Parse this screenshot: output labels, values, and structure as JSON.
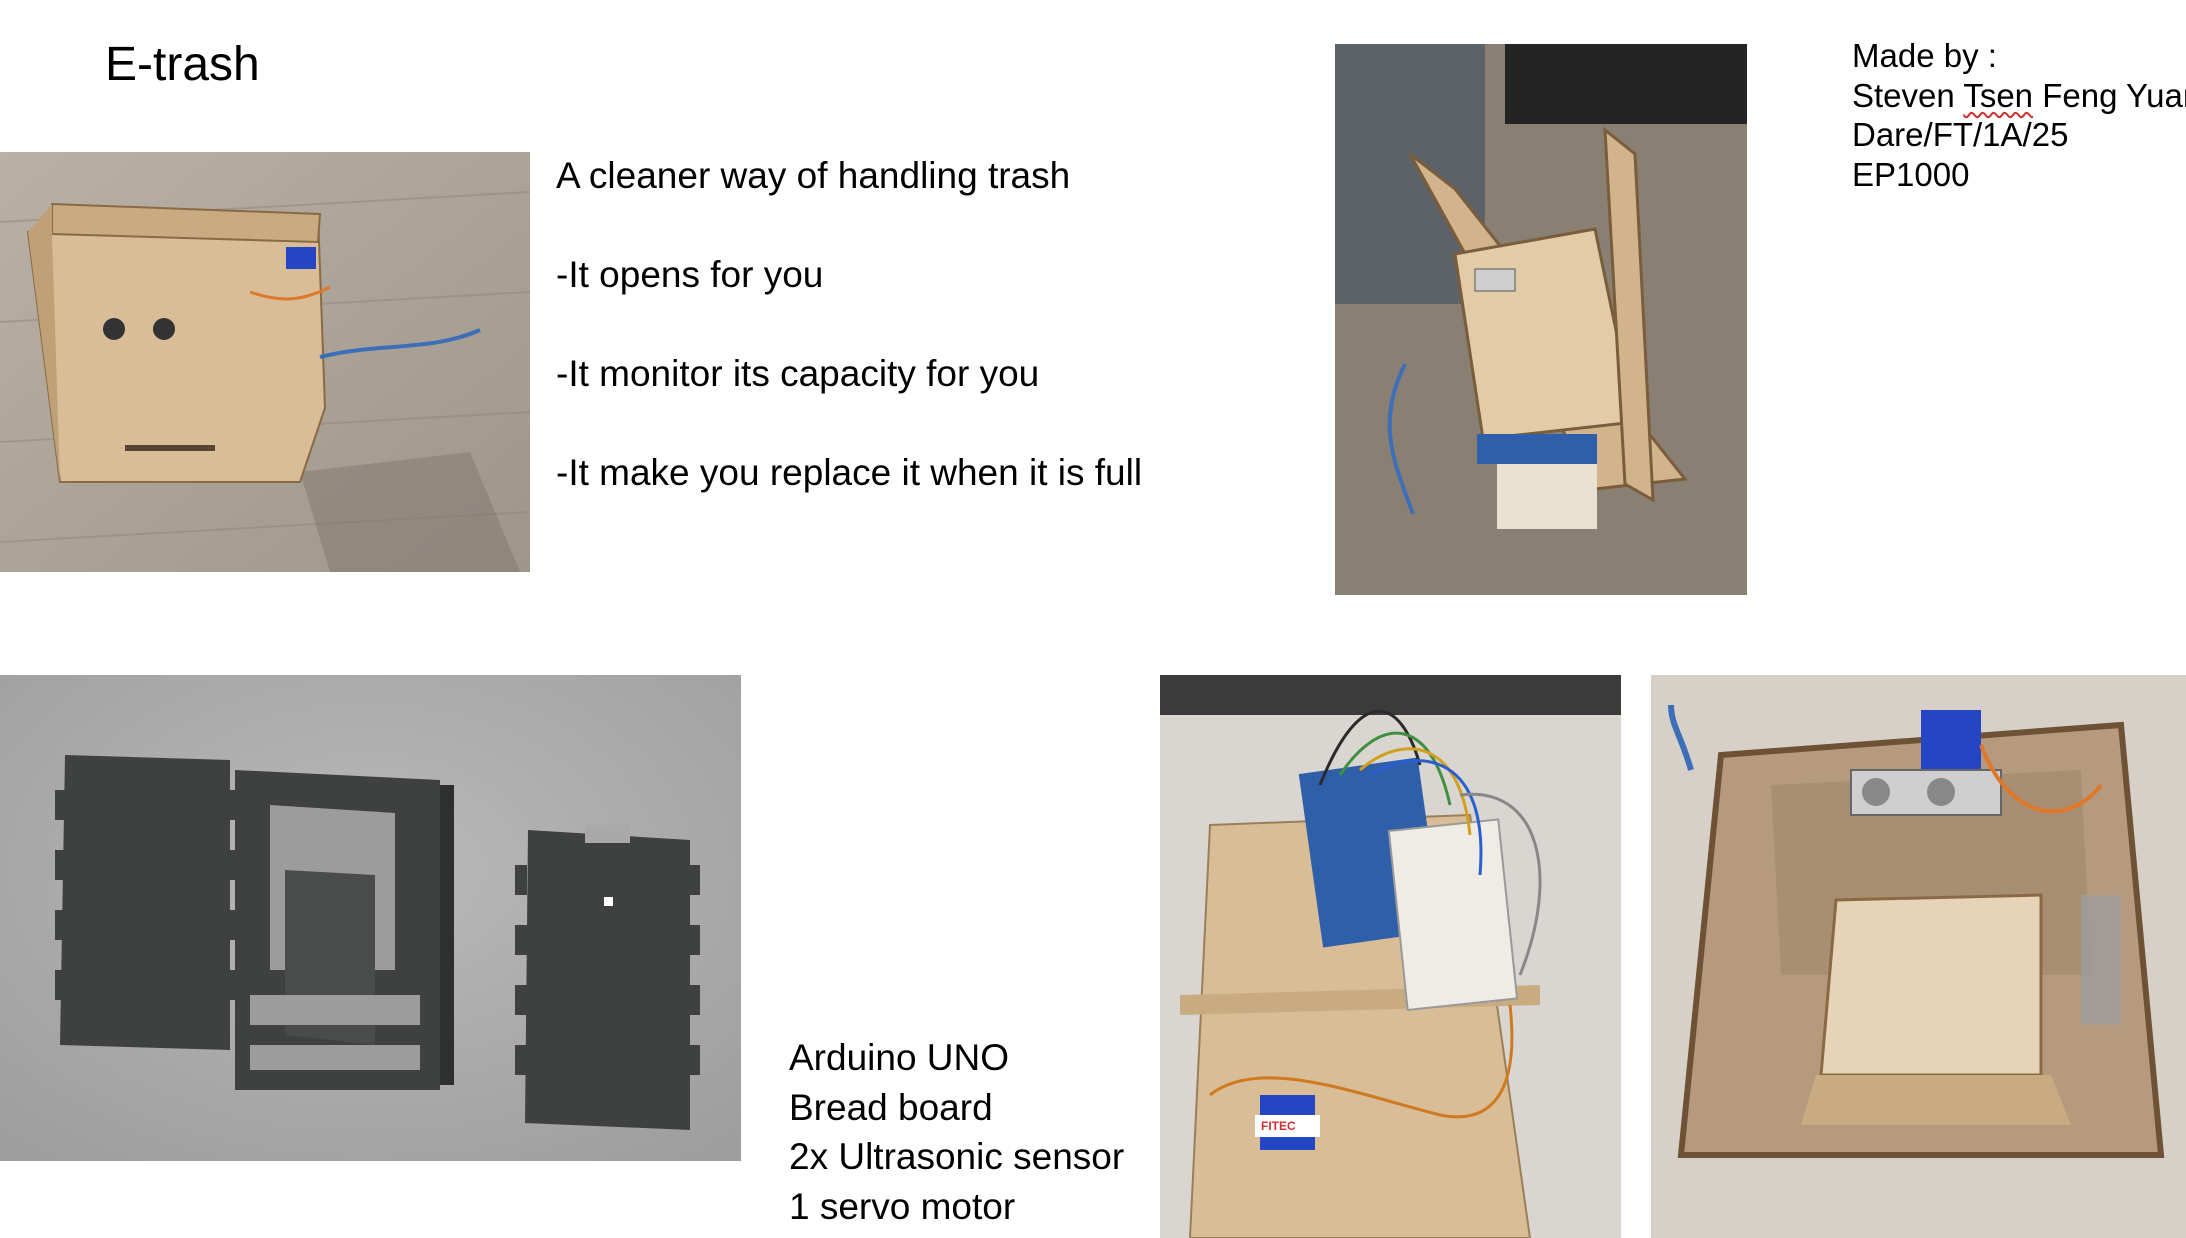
{
  "title": "E-trash",
  "features": [
    "A cleaner way of handling trash",
    "-It opens for you",
    "-It monitor its capacity for you",
    "-It make you replace it when it is full"
  ],
  "credits": {
    "label": "Made by :",
    "name_prefix": "Steven ",
    "name_flagged": "Tsen",
    "name_suffix": " Feng Yuan",
    "class": "Dare/FT/1A/25",
    "module": "EP1000"
  },
  "components": [
    "Arduino UNO",
    "Bread board",
    "2x Ultrasonic sensor",
    "1 servo motor"
  ],
  "servo_brand": "FITEC",
  "colors": {
    "wood": "#d8bd97",
    "cad_panel": "#3f4140",
    "cad_background": "#a9a9a9",
    "arduino_blue": "#2f5fa8",
    "servo_blue": "#2446c4"
  }
}
